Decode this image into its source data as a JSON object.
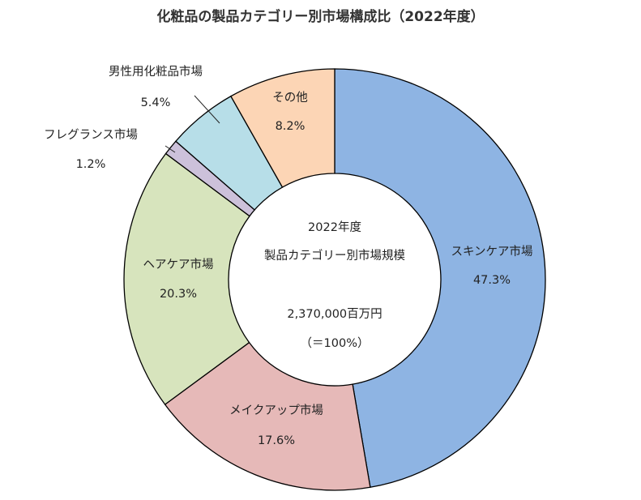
{
  "chart_data": {
    "type": "pie",
    "title": "化粧品の製品カテゴリー別市場構成比（2022年度）",
    "categories": [
      "スキンケア市場",
      "メイクアップ市場",
      "ヘアケア市場",
      "フレグランス市場",
      "男性用化粧品市場",
      "その他"
    ],
    "values": [
      47.3,
      17.6,
      20.3,
      1.2,
      5.4,
      8.2
    ],
    "value_labels": [
      "47.3%",
      "17.6%",
      "20.3%",
      "1.2%",
      "5.4%",
      "8.2%"
    ],
    "colors": [
      "#8eb4e3",
      "#e6b9b8",
      "#d7e4bd",
      "#ccc1da",
      "#b7dee8",
      "#fcd5b5"
    ],
    "center": {
      "line1": "2022年度",
      "line2": "製品カテゴリー別市場規模",
      "line3": "2,370,000百万円",
      "line4": "（＝100%）"
    }
  }
}
